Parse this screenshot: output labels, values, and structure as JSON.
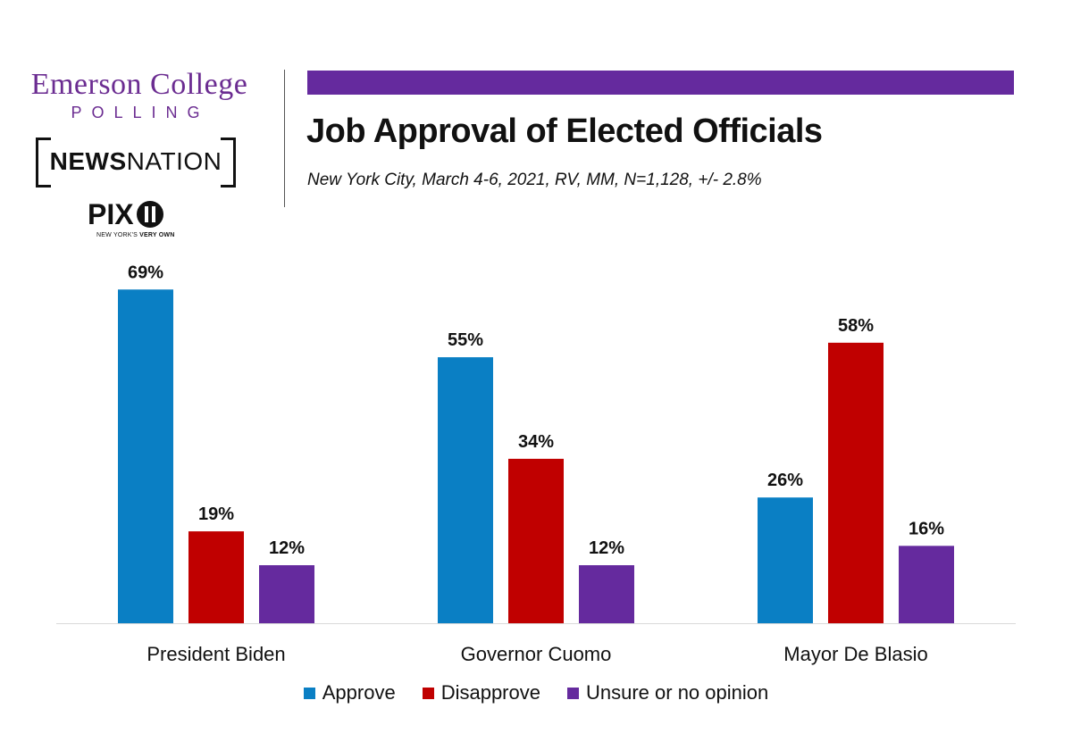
{
  "logos": {
    "emerson": "Emerson College",
    "polling": "POLLING",
    "newsnation_bold": "NEWS",
    "newsnation_light": "NATION",
    "pix": "PIX",
    "pix_tagline_light": "NEW YORK'S",
    "pix_tagline_bold": "VERY OWN"
  },
  "colors": {
    "approve": "#0a7fc4",
    "disapprove": "#c00000",
    "unsure": "#652a9e",
    "brand_purple": "#652a9e"
  },
  "chart_data": {
    "type": "bar",
    "title": "Job Approval of Elected Officials",
    "subtitle": "New York City, March 4-6, 2021, RV, MM, N=1,128, +/- 2.8%",
    "categories": [
      "President Biden",
      "Governor Cuomo",
      "Mayor De Blasio"
    ],
    "series": [
      {
        "name": "Approve",
        "values": [
          69,
          55,
          26
        ]
      },
      {
        "name": "Disapprove",
        "values": [
          19,
          34,
          58
        ]
      },
      {
        "name": "Unsure or no opinion",
        "values": [
          12,
          12,
          16
        ]
      }
    ],
    "value_suffix": "%",
    "ylim": [
      0,
      72
    ],
    "grid": false,
    "legend_position": "bottom"
  }
}
